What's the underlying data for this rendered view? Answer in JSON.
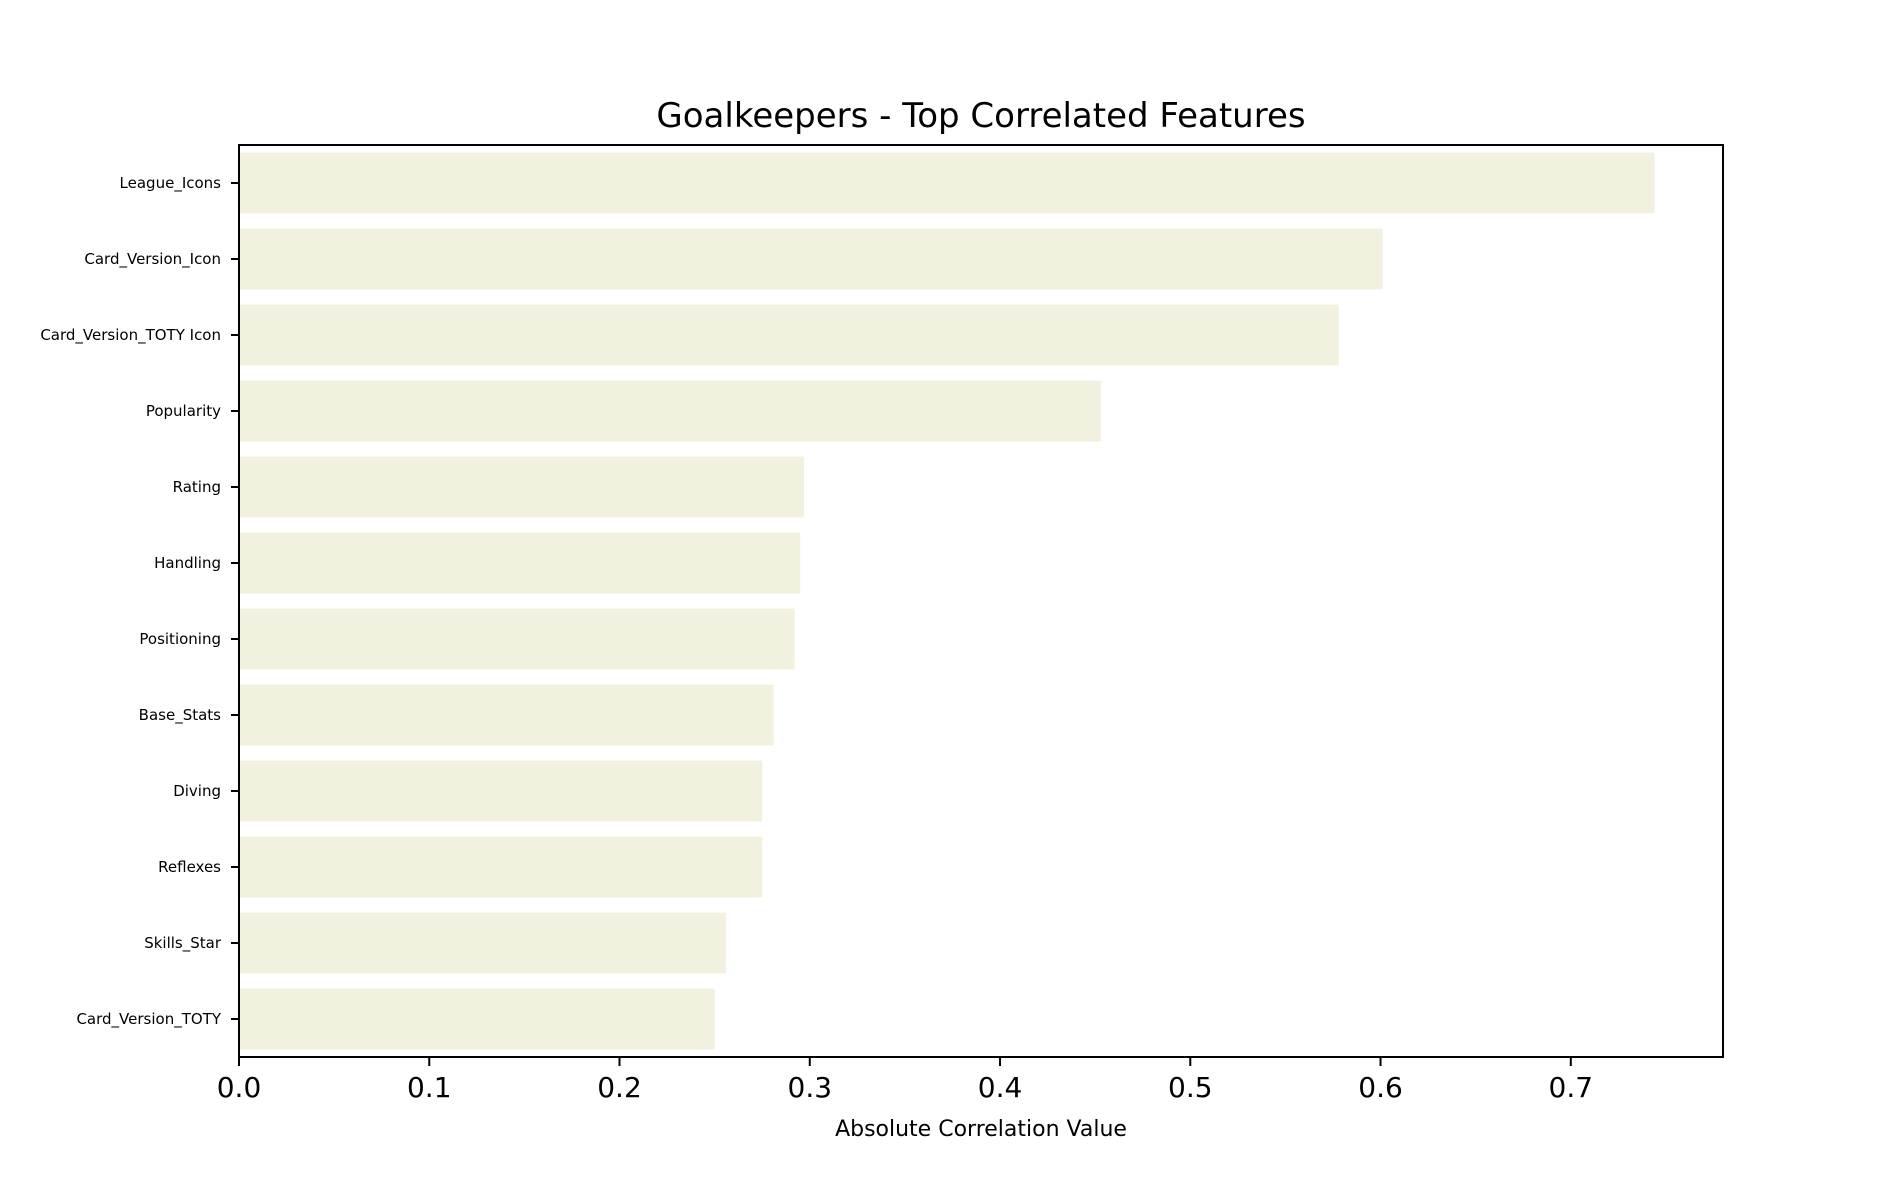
{
  "chart_data": {
    "type": "bar",
    "orientation": "horizontal",
    "title": "Goalkeepers - Top Correlated Features",
    "xlabel": "Absolute Correlation Value",
    "ylabel": "",
    "categories": [
      "League_Icons",
      "Card_Version_Icon",
      "Card_Version_TOTY Icon",
      "Popularity",
      "Rating",
      "Handling",
      "Positioning",
      "Base_Stats",
      "Diving",
      "Reflexes",
      "Skills_Star",
      "Card_Version_TOTY"
    ],
    "values": [
      0.744,
      0.601,
      0.578,
      0.453,
      0.297,
      0.295,
      0.292,
      0.281,
      0.275,
      0.275,
      0.256,
      0.25
    ],
    "xlim": [
      0,
      0.78
    ],
    "xticks": [
      0.0,
      0.1,
      0.2,
      0.3,
      0.4,
      0.5,
      0.6,
      0.7
    ],
    "xtick_labels": [
      "0.0",
      "0.1",
      "0.2",
      "0.3",
      "0.4",
      "0.5",
      "0.6",
      "0.7"
    ],
    "bar_color": "#f2f0de",
    "grid": false,
    "legend": "none"
  }
}
